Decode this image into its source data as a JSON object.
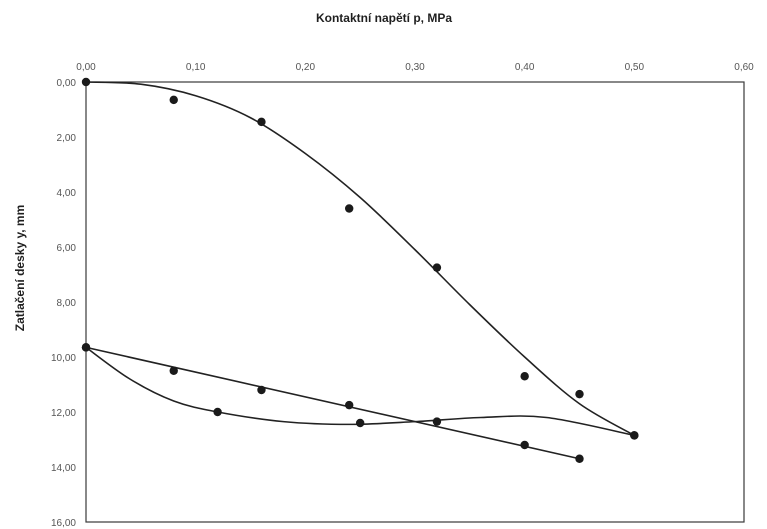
{
  "chart_data": {
    "type": "scatter",
    "title": "Kontaktní napětí p, MPa",
    "xlabel": "",
    "ylabel": "Zatlačení desky y, mm",
    "xlim": [
      0,
      0.6
    ],
    "ylim": [
      0,
      16
    ],
    "y_inverted": true,
    "x_axis_position": "top",
    "grid": false,
    "legend": "none",
    "x_ticks": [
      "0,00",
      "0,10",
      "0,20",
      "0,30",
      "0,40",
      "0,50",
      "0,60"
    ],
    "y_ticks": [
      "0,00",
      "2,00",
      "4,00",
      "6,00",
      "8,00",
      "10,00",
      "12,00",
      "14,00",
      "16,00"
    ],
    "series": [
      {
        "points": [
          [
            0.0,
            0.0
          ],
          [
            0.08,
            0.65
          ],
          [
            0.16,
            1.45
          ],
          [
            0.24,
            4.6
          ],
          [
            0.32,
            6.75
          ],
          [
            0.4,
            10.7
          ],
          [
            0.45,
            11.35
          ],
          [
            0.5,
            12.85
          ]
        ],
        "fit": [
          [
            0.0,
            0.0
          ],
          [
            0.05,
            0.08
          ],
          [
            0.1,
            0.5
          ],
          [
            0.15,
            1.3
          ],
          [
            0.2,
            2.6
          ],
          [
            0.25,
            4.2
          ],
          [
            0.3,
            6.1
          ],
          [
            0.35,
            8.1
          ],
          [
            0.4,
            10.0
          ],
          [
            0.45,
            11.7
          ],
          [
            0.5,
            12.85
          ]
        ]
      },
      {
        "points": [
          [
            0.0,
            9.65
          ],
          [
            0.08,
            10.5
          ],
          [
            0.16,
            11.2
          ],
          [
            0.24,
            11.75
          ],
          [
            0.4,
            13.2
          ],
          [
            0.45,
            13.7
          ]
        ],
        "fit": [
          [
            0.0,
            9.65
          ],
          [
            0.45,
            13.7
          ]
        ]
      },
      {
        "points": [
          [
            0.0,
            9.65
          ],
          [
            0.12,
            12.0
          ],
          [
            0.25,
            12.4
          ],
          [
            0.32,
            12.35
          ],
          [
            0.5,
            12.85
          ]
        ],
        "fit": [
          [
            0.0,
            9.65
          ],
          [
            0.04,
            10.8
          ],
          [
            0.08,
            11.6
          ],
          [
            0.12,
            12.0
          ],
          [
            0.18,
            12.35
          ],
          [
            0.24,
            12.45
          ],
          [
            0.3,
            12.35
          ],
          [
            0.36,
            12.2
          ],
          [
            0.42,
            12.2
          ],
          [
            0.5,
            12.85
          ]
        ]
      }
    ],
    "colors": {
      "marker": "#1a1a1a",
      "line": "#222222",
      "frame": "#3a3a3a",
      "tick_text": "#555555"
    }
  }
}
